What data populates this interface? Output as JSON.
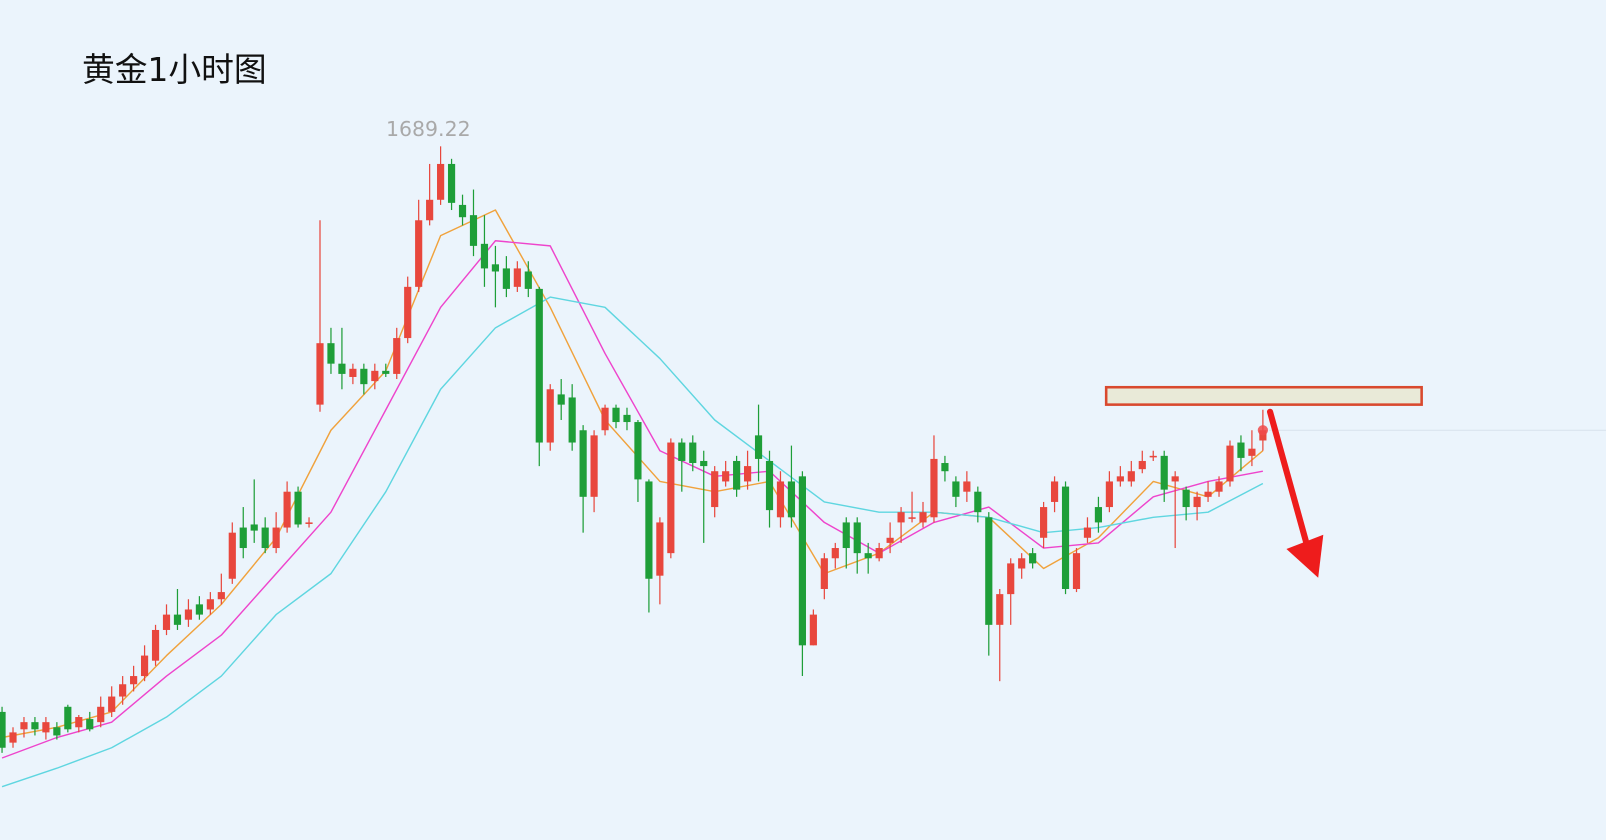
{
  "chart_data": {
    "type": "candlestick",
    "title": "黄金1小时图",
    "up_color": "#e8473d",
    "down_color": "#1e9e38",
    "ylim": [
      1621.5,
      1703.5
    ],
    "candles": {
      "open": [
        1634.0,
        1631.0,
        1632.3,
        1633.0,
        1632.0,
        1632.5,
        1634.5,
        1632.5,
        1633.3,
        1633.0,
        1634.0,
        1635.5,
        1636.7,
        1637.5,
        1639.0,
        1642.0,
        1643.5,
        1643.0,
        1644.5,
        1644.0,
        1645.0,
        1647.0,
        1652.0,
        1652.3,
        1652.0,
        1650.0,
        1652.0,
        1655.5,
        1652.5,
        1664.0,
        1670.0,
        1668.0,
        1666.7,
        1667.5,
        1666.3,
        1667.3,
        1667.0,
        1670.5,
        1675.5,
        1682.0,
        1684.0,
        1687.5,
        1683.5,
        1682.5,
        1679.7,
        1677.7,
        1677.3,
        1675.5,
        1677.0,
        1675.3,
        1660.3,
        1665.0,
        1664.7,
        1661.5,
        1655.0,
        1661.5,
        1663.7,
        1663.0,
        1662.3,
        1656.5,
        1647.3,
        1649.5,
        1660.3,
        1660.3,
        1658.5,
        1654.0,
        1656.5,
        1658.5,
        1656.5,
        1661.0,
        1658.5,
        1653.0,
        1656.5,
        1657.0,
        1640.5,
        1646.0,
        1649.0,
        1652.5,
        1652.5,
        1649.5,
        1649.0,
        1650.5,
        1652.5,
        1653.0,
        1652.5,
        1653.0,
        1658.3,
        1656.5,
        1655.5,
        1655.5,
        1653.0,
        1642.5,
        1645.5,
        1648.0,
        1649.5,
        1651.0,
        1654.5,
        1656.0,
        1646.0,
        1651.0,
        1654.0,
        1654.0,
        1656.5,
        1656.5,
        1657.7,
        1659.0,
        1659.0,
        1656.5,
        1655.7,
        1654.0,
        1655.0,
        1655.5,
        1656.5,
        1660.3,
        1659.0,
        1660.5
      ],
      "high": [
        1634.5,
        1632.5,
        1633.5,
        1633.5,
        1633.5,
        1633.0,
        1634.7,
        1633.7,
        1634.0,
        1635.5,
        1636.5,
        1637.5,
        1638.5,
        1640.5,
        1642.5,
        1644.5,
        1646.0,
        1645.0,
        1645.3,
        1645.7,
        1647.5,
        1652.5,
        1654.0,
        1656.7,
        1653.0,
        1653.5,
        1656.5,
        1656.0,
        1653.0,
        1682.0,
        1671.5,
        1671.5,
        1668.0,
        1668.0,
        1668.0,
        1668.0,
        1671.5,
        1676.5,
        1684.0,
        1687.5,
        1689.22,
        1688.0,
        1684.5,
        1685.0,
        1682.5,
        1679.5,
        1678.5,
        1678.0,
        1678.0,
        1675.5,
        1666.0,
        1666.5,
        1666.0,
        1662.0,
        1661.5,
        1664.0,
        1664.0,
        1663.7,
        1662.5,
        1656.7,
        1653.0,
        1660.7,
        1660.7,
        1661.0,
        1659.5,
        1658.0,
        1658.5,
        1659.0,
        1659.5,
        1664.0,
        1659.5,
        1657.5,
        1660.0,
        1657.5,
        1644.0,
        1649.5,
        1650.5,
        1653.0,
        1653.0,
        1650.5,
        1650.5,
        1652.5,
        1654.0,
        1655.5,
        1654.5,
        1661.0,
        1659.0,
        1657.0,
        1657.5,
        1656.0,
        1653.5,
        1646.0,
        1649.0,
        1649.5,
        1650.0,
        1654.5,
        1657.0,
        1656.5,
        1650.0,
        1653.0,
        1655.0,
        1657.5,
        1658.0,
        1658.5,
        1659.5,
        1659.5,
        1659.5,
        1657.5,
        1656.0,
        1655.5,
        1656.5,
        1657.0,
        1660.5,
        1661.0,
        1661.5,
        1663.5
      ],
      "low": [
        1630.0,
        1630.5,
        1631.5,
        1631.7,
        1631.3,
        1631.3,
        1632.0,
        1632.0,
        1632.1,
        1632.5,
        1633.5,
        1634.7,
        1636.0,
        1637.0,
        1638.5,
        1641.5,
        1642.0,
        1642.3,
        1643.0,
        1643.5,
        1644.5,
        1646.5,
        1649.0,
        1650.5,
        1649.5,
        1649.5,
        1651.5,
        1652.0,
        1652.0,
        1663.3,
        1667.0,
        1665.5,
        1666.0,
        1665.0,
        1665.5,
        1666.7,
        1666.5,
        1670.0,
        1675.0,
        1681.5,
        1683.5,
        1683.0,
        1681.5,
        1678.5,
        1675.5,
        1673.5,
        1674.5,
        1675.0,
        1674.5,
        1658.0,
        1659.5,
        1662.5,
        1659.5,
        1651.5,
        1653.5,
        1661.0,
        1661.7,
        1661.5,
        1654.5,
        1643.7,
        1644.5,
        1649.0,
        1655.5,
        1657.5,
        1650.5,
        1653.0,
        1656.0,
        1655.0,
        1655.7,
        1656.5,
        1652.0,
        1652.0,
        1652.0,
        1637.5,
        1640.5,
        1645.0,
        1648.0,
        1648.0,
        1647.5,
        1647.5,
        1648.7,
        1649.5,
        1650.5,
        1652.5,
        1652.0,
        1652.5,
        1656.5,
        1654.0,
        1654.5,
        1652.5,
        1639.5,
        1637.0,
        1642.5,
        1647.0,
        1648.0,
        1650.0,
        1653.5,
        1645.5,
        1645.7,
        1650.5,
        1651.5,
        1653.5,
        1656.0,
        1656.0,
        1657.3,
        1658.5,
        1654.5,
        1650.0,
        1652.7,
        1652.7,
        1654.5,
        1655.0,
        1656.0,
        1657.5,
        1658.0,
        1659.5
      ],
      "close": [
        1630.5,
        1632.0,
        1633.0,
        1632.3,
        1633.0,
        1631.7,
        1632.3,
        1633.5,
        1632.3,
        1634.5,
        1635.5,
        1636.7,
        1637.5,
        1639.5,
        1642.0,
        1643.5,
        1642.5,
        1644.0,
        1643.5,
        1645.0,
        1645.7,
        1651.5,
        1650.0,
        1651.7,
        1650.0,
        1652.0,
        1655.5,
        1652.3,
        1652.5,
        1670.0,
        1668.0,
        1667.0,
        1667.5,
        1666.0,
        1667.3,
        1667.0,
        1670.5,
        1675.5,
        1682.0,
        1684.0,
        1687.5,
        1683.7,
        1682.3,
        1679.5,
        1677.3,
        1677.0,
        1675.3,
        1677.3,
        1675.3,
        1660.3,
        1665.5,
        1664.0,
        1660.3,
        1655.0,
        1661.0,
        1663.7,
        1662.3,
        1662.3,
        1656.7,
        1647.0,
        1652.5,
        1660.3,
        1658.5,
        1658.3,
        1658.0,
        1657.5,
        1657.5,
        1655.7,
        1658.0,
        1658.7,
        1653.7,
        1656.5,
        1653.0,
        1640.5,
        1643.5,
        1649.0,
        1650.0,
        1650.0,
        1649.5,
        1649.0,
        1650.0,
        1651.0,
        1653.5,
        1653.0,
        1653.5,
        1658.7,
        1657.5,
        1655.0,
        1656.5,
        1653.5,
        1642.5,
        1645.5,
        1648.5,
        1649.0,
        1648.5,
        1654.0,
        1656.5,
        1646.0,
        1649.5,
        1652.0,
        1652.5,
        1656.5,
        1657.0,
        1657.5,
        1658.5,
        1659.0,
        1655.7,
        1657.0,
        1654.0,
        1655.0,
        1655.5,
        1656.5,
        1660.0,
        1658.8,
        1659.7,
        1661.5
      ]
    },
    "lines": [
      {
        "color": "#f0a23c",
        "x": [
          0,
          5,
          10,
          15,
          20,
          25,
          30,
          35,
          40,
          45,
          50,
          55,
          60,
          65,
          70,
          75,
          80,
          85,
          90,
          95,
          100,
          105,
          110,
          115
        ],
        "values": [
          1631.5,
          1632.5,
          1634.0,
          1639.5,
          1644.5,
          1651.0,
          1661.5,
          1667.3,
          1680.5,
          1683.0,
          1673.5,
          1662.5,
          1656.5,
          1655.5,
          1656.5,
          1647.5,
          1649.5,
          1653.5,
          1653.0,
          1648.0,
          1651.0,
          1656.5,
          1655.0,
          1659.5
        ]
      },
      {
        "color": "#ee44cc",
        "x": [
          0,
          5,
          10,
          15,
          20,
          25,
          30,
          35,
          40,
          45,
          50,
          55,
          60,
          65,
          70,
          75,
          80,
          85,
          90,
          95,
          100,
          105,
          110,
          115
        ],
        "values": [
          1629.5,
          1631.5,
          1633.0,
          1637.5,
          1641.5,
          1647.5,
          1653.5,
          1663.5,
          1673.5,
          1680.0,
          1679.5,
          1669.0,
          1659.5,
          1657.0,
          1657.5,
          1652.5,
          1649.5,
          1652.5,
          1654.0,
          1650.0,
          1650.5,
          1655.0,
          1656.5,
          1657.5
        ]
      },
      {
        "color": "#5fd6e0",
        "x": [
          0,
          5,
          10,
          15,
          20,
          25,
          30,
          35,
          40,
          45,
          50,
          55,
          60,
          65,
          70,
          75,
          80,
          85,
          90,
          95,
          100,
          105,
          110,
          115
        ],
        "values": [
          1626.7,
          1628.5,
          1630.5,
          1633.5,
          1637.5,
          1643.5,
          1647.5,
          1655.5,
          1665.5,
          1671.5,
          1674.5,
          1673.5,
          1668.5,
          1662.5,
          1658.5,
          1654.5,
          1653.5,
          1653.5,
          1653.0,
          1651.5,
          1652.0,
          1653.0,
          1653.5,
          1656.3
        ]
      }
    ],
    "resistance_zone": [
      1664.0,
      1665.7
    ]
  }
}
